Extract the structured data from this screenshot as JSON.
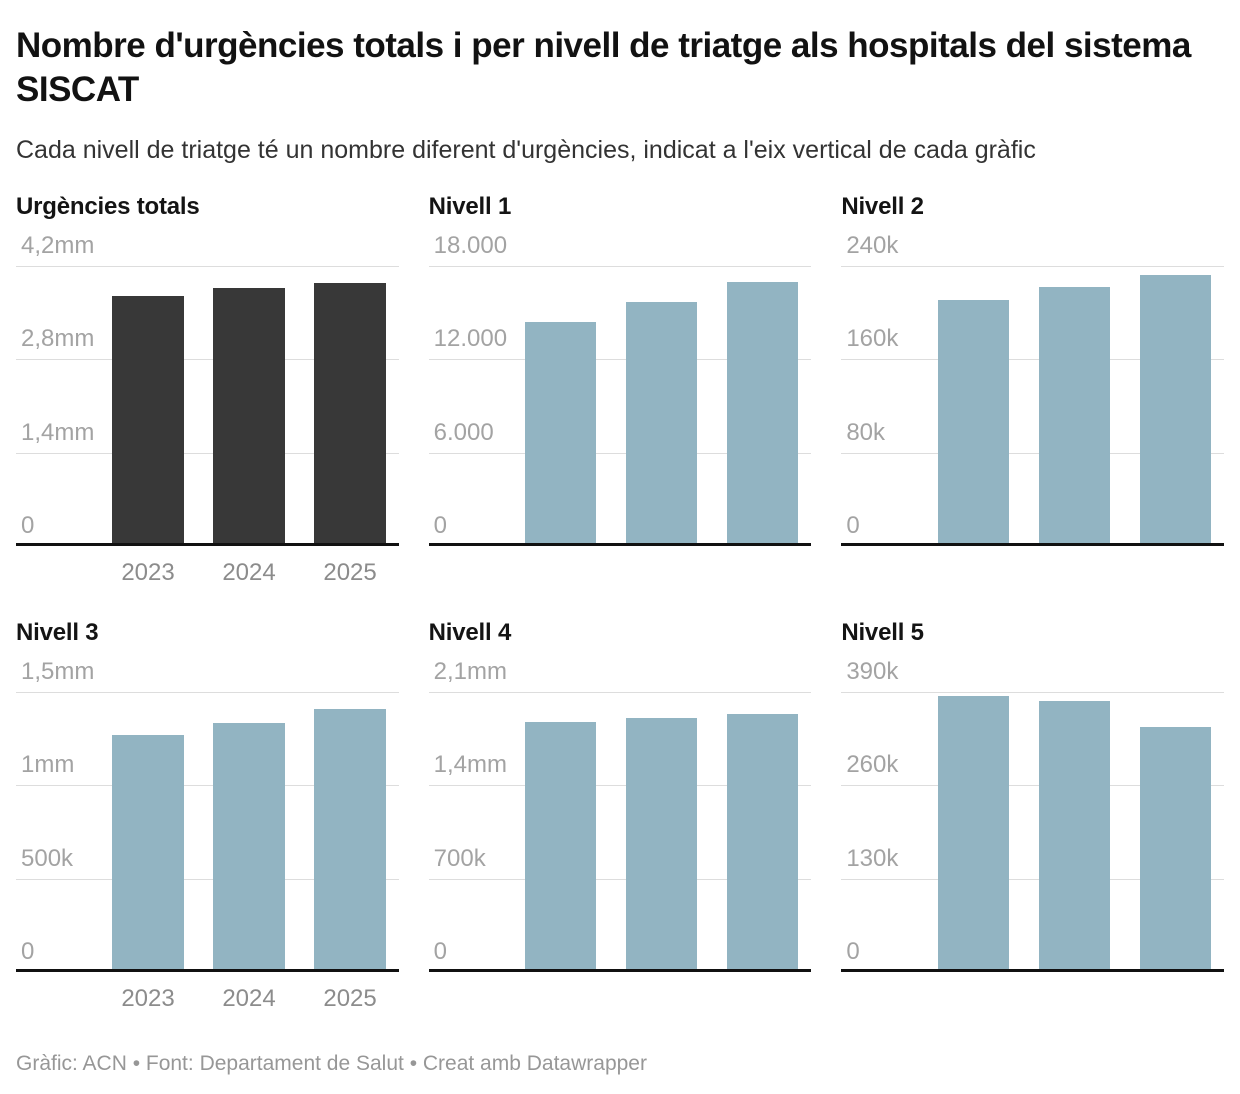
{
  "header": {
    "title": "Nombre d'urgències totals i per nivell de triatge als hospitals del sistema SISCAT",
    "subtitle": "Cada nivell de triatge té un nombre diferent d'urgències, indicat a l'eix vertical de cada gràfic"
  },
  "footer": {
    "text": "Gràfic: ACN • Font: Departament de Salut • Creat amb Datawrapper"
  },
  "colors": {
    "dark_bar": "#383838",
    "blue_bar": "#92b4c2",
    "gridline": "#dddddd",
    "baseline": "#111111",
    "tick_label": "#a3a3a3",
    "year_label": "#8c8c8c"
  },
  "chart_data": [
    {
      "type": "bar",
      "title": "Urgències totals",
      "categories": [
        "2023",
        "2024",
        "2025"
      ],
      "values": [
        3750000,
        3870000,
        3945000
      ],
      "ylim": [
        0,
        4200000
      ],
      "ytick_labels_top_to_bottom": [
        "4,2mm",
        "2,8mm",
        "1,4mm",
        "0"
      ],
      "bar_color": "#383838",
      "show_x_labels": true,
      "grid": true,
      "legend": "none"
    },
    {
      "type": "bar",
      "title": "Nivell 1",
      "categories": [
        "2023",
        "2024",
        "2025"
      ],
      "values": [
        14400,
        15700,
        16950
      ],
      "ylim": [
        0,
        18000
      ],
      "ytick_labels_top_to_bottom": [
        "18.000",
        "12.000",
        "6.000",
        "0"
      ],
      "bar_color": "#92b4c2",
      "show_x_labels": false,
      "grid": true,
      "legend": "none"
    },
    {
      "type": "bar",
      "title": "Nivell 2",
      "categories": [
        "2023",
        "2024",
        "2025"
      ],
      "values": [
        211000,
        222000,
        232000
      ],
      "ylim": [
        0,
        240000
      ],
      "ytick_labels_top_to_bottom": [
        "240k",
        "160k",
        "80k",
        "0"
      ],
      "bar_color": "#92b4c2",
      "show_x_labels": false,
      "grid": true,
      "legend": "none"
    },
    {
      "type": "bar",
      "title": "Nivell 3",
      "categories": [
        "2023",
        "2024",
        "2025"
      ],
      "values": [
        1270000,
        1332000,
        1409000
      ],
      "ylim": [
        0,
        1500000
      ],
      "ytick_labels_top_to_bottom": [
        "1,5mm",
        "1mm",
        "500k",
        "0"
      ],
      "bar_color": "#92b4c2",
      "show_x_labels": true,
      "grid": true,
      "legend": "none"
    },
    {
      "type": "bar",
      "title": "Nivell 4",
      "categories": [
        "2023",
        "2024",
        "2025"
      ],
      "values": [
        1875000,
        1905000,
        1937000
      ],
      "ylim": [
        0,
        2100000
      ],
      "ytick_labels_top_to_bottom": [
        "2,1mm",
        "1,4mm",
        "700k",
        "0"
      ],
      "bar_color": "#92b4c2",
      "show_x_labels": false,
      "grid": true,
      "legend": "none"
    },
    {
      "type": "bar",
      "title": "Nivell 5",
      "categories": [
        "2023",
        "2024",
        "2025"
      ],
      "values": [
        385000,
        377000,
        341000
      ],
      "ylim": [
        0,
        390000
      ],
      "ytick_labels_top_to_bottom": [
        "390k",
        "260k",
        "130k",
        "0"
      ],
      "bar_color": "#92b4c2",
      "show_x_labels": false,
      "grid": true,
      "legend": "none"
    }
  ]
}
